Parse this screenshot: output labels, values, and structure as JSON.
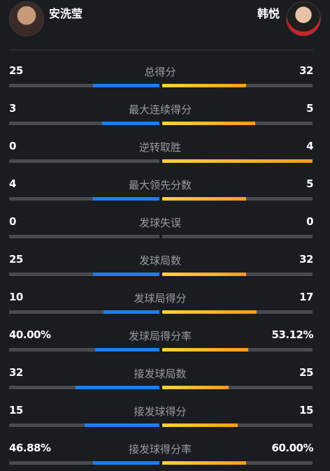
{
  "players": {
    "left": {
      "name": "安洗莹"
    },
    "right": {
      "name": "韩悦"
    }
  },
  "colors": {
    "left_bar": "#1e7df0",
    "right_bar": "#ffb020",
    "track": "#4a4b50"
  },
  "stats": [
    {
      "label": "总得分",
      "left": "25",
      "right": "32",
      "left_fill": 0.44,
      "right_fill": 0.56
    },
    {
      "label": "最大连续得分",
      "left": "3",
      "right": "5",
      "left_fill": 0.38,
      "right_fill": 0.62
    },
    {
      "label": "逆转取胜",
      "left": "0",
      "right": "4",
      "left_fill": 0.0,
      "right_fill": 1.0
    },
    {
      "label": "最大领先分数",
      "left": "4",
      "right": "5",
      "left_fill": 0.44,
      "right_fill": 0.56
    },
    {
      "label": "发球失误",
      "left": "0",
      "right": "0",
      "left_fill": 0.0,
      "right_fill": 0.0
    },
    {
      "label": "发球局数",
      "left": "25",
      "right": "32",
      "left_fill": 0.44,
      "right_fill": 0.56
    },
    {
      "label": "发球局得分",
      "left": "10",
      "right": "17",
      "left_fill": 0.37,
      "right_fill": 0.63
    },
    {
      "label": "发球局得分率",
      "left": "40.00%",
      "right": "53.12%",
      "left_fill": 0.43,
      "right_fill": 0.57
    },
    {
      "label": "接发球局数",
      "left": "32",
      "right": "25",
      "left_fill": 0.56,
      "right_fill": 0.44
    },
    {
      "label": "接发球得分",
      "left": "15",
      "right": "15",
      "left_fill": 0.5,
      "right_fill": 0.5
    },
    {
      "label": "接发球得分率",
      "left": "46.88%",
      "right": "60.00%",
      "left_fill": 0.44,
      "right_fill": 0.56
    }
  ]
}
